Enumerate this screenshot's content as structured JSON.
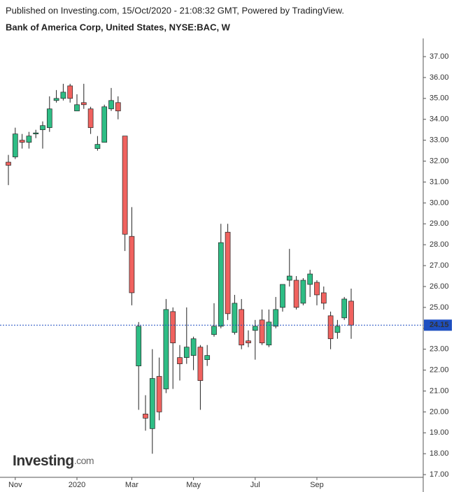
{
  "header": {
    "published": "Published on Investing.com, 15/Oct/2020 - 21:08:32 GMT, Powered by TradingView.",
    "logo": {
      "name": "Investing",
      "suffix": ".com"
    }
  },
  "chart_data": {
    "type": "candlestick",
    "title": "Bank of America Corp, United States, NYSE:BAC, W",
    "categories": [
      null,
      "Nov",
      null,
      null,
      null,
      null,
      null,
      null,
      null,
      null,
      "2020",
      null,
      null,
      null,
      null,
      null,
      null,
      null,
      "Mar",
      null,
      null,
      null,
      null,
      null,
      null,
      null,
      null,
      "May",
      null,
      null,
      null,
      null,
      null,
      null,
      null,
      null,
      "Jul",
      null,
      null,
      null,
      null,
      null,
      null,
      null,
      null,
      "Sep",
      null,
      null,
      null,
      null,
      null
    ],
    "open": [
      31.95,
      32.2,
      33.0,
      32.9,
      33.3,
      33.5,
      33.6,
      34.9,
      35.0,
      35.6,
      34.4,
      34.8,
      34.5,
      32.6,
      32.9,
      34.5,
      34.8,
      33.2,
      28.4,
      22.2,
      19.9,
      19.2,
      21.7,
      21.1,
      24.8,
      22.6,
      22.6,
      22.7,
      23.1,
      22.5,
      23.7,
      24.1,
      28.6,
      23.8,
      24.9,
      23.4,
      23.9,
      24.4,
      23.2,
      24.1,
      25.0,
      26.3,
      26.3,
      25.2,
      26.1,
      26.2,
      25.7,
      24.6,
      23.8,
      24.5,
      25.3
    ],
    "high": [
      32.3,
      33.6,
      33.3,
      33.4,
      33.5,
      33.9,
      35.1,
      35.4,
      35.7,
      35.7,
      35.2,
      35.7,
      34.6,
      33.2,
      34.7,
      35.5,
      35.1,
      33.2,
      29.8,
      24.3,
      20.8,
      23.0,
      22.6,
      25.4,
      25.0,
      23.2,
      25.0,
      23.6,
      23.2,
      23.2,
      25.2,
      29.0,
      29.0,
      25.6,
      25.4,
      23.9,
      24.4,
      24.9,
      24.9,
      25.5,
      26.1,
      27.8,
      26.5,
      26.4,
      26.8,
      26.3,
      26.0,
      24.8,
      24.4,
      25.5,
      25.9
    ],
    "low": [
      30.85,
      32.1,
      32.6,
      32.6,
      33.1,
      32.6,
      33.4,
      34.8,
      34.9,
      34.8,
      34.4,
      34.5,
      33.3,
      32.5,
      32.9,
      34.4,
      34.0,
      27.7,
      25.1,
      20.1,
      19.1,
      18.0,
      19.6,
      20.9,
      21.1,
      21.5,
      22.3,
      22.0,
      20.1,
      22.2,
      23.6,
      24.0,
      24.4,
      23.7,
      23.0,
      23.1,
      22.5,
      23.2,
      23.1,
      24.0,
      24.8,
      26.0,
      24.9,
      25.1,
      25.5,
      25.1,
      24.9,
      23.0,
      23.5,
      24.4,
      23.5
    ],
    "close": [
      31.8,
      33.3,
      32.9,
      33.2,
      33.35,
      33.7,
      34.5,
      35.0,
      35.3,
      35.0,
      34.7,
      34.7,
      33.6,
      32.8,
      34.6,
      34.9,
      34.4,
      28.5,
      25.7,
      24.1,
      19.7,
      21.6,
      20.0,
      24.9,
      23.3,
      22.3,
      23.1,
      23.5,
      21.5,
      22.7,
      24.1,
      28.1,
      24.7,
      25.2,
      23.2,
      23.3,
      24.1,
      23.3,
      24.3,
      24.9,
      26.1,
      26.5,
      25.0,
      26.3,
      26.6,
      25.6,
      25.2,
      23.5,
      24.1,
      25.4,
      24.15
    ],
    "up_color": "#2ebd85",
    "down_color": "#f0625f",
    "edge_color": "#222222",
    "last_price": 24.15,
    "last_price_color": "#1e4fc0",
    "ylim": [
      16.87,
      37.87
    ],
    "yticks": [
      {
        "value": 17,
        "label": "17.00"
      },
      {
        "value": 18,
        "label": "18.00"
      },
      {
        "value": 19,
        "label": "19.00"
      },
      {
        "value": 20,
        "label": "20.00"
      },
      {
        "value": 21,
        "label": "21.00"
      },
      {
        "value": 22,
        "label": "22.00"
      },
      {
        "value": 23,
        "label": "23.00"
      },
      {
        "value": 24,
        "label": "24.00"
      },
      {
        "value": 25,
        "label": "25.00"
      },
      {
        "value": 26,
        "label": "26.00"
      },
      {
        "value": 27,
        "label": "27.00"
      },
      {
        "value": 28,
        "label": "28.00"
      },
      {
        "value": 29,
        "label": "29.00"
      },
      {
        "value": 30,
        "label": "30.00"
      },
      {
        "value": 31,
        "label": "31.00"
      },
      {
        "value": 32,
        "label": "32.00"
      },
      {
        "value": 33,
        "label": "33.00"
      },
      {
        "value": 34,
        "label": "34.00"
      },
      {
        "value": 35,
        "label": "35.00"
      },
      {
        "value": 36,
        "label": "36.00"
      },
      {
        "value": 37,
        "label": "37.00"
      }
    ]
  }
}
